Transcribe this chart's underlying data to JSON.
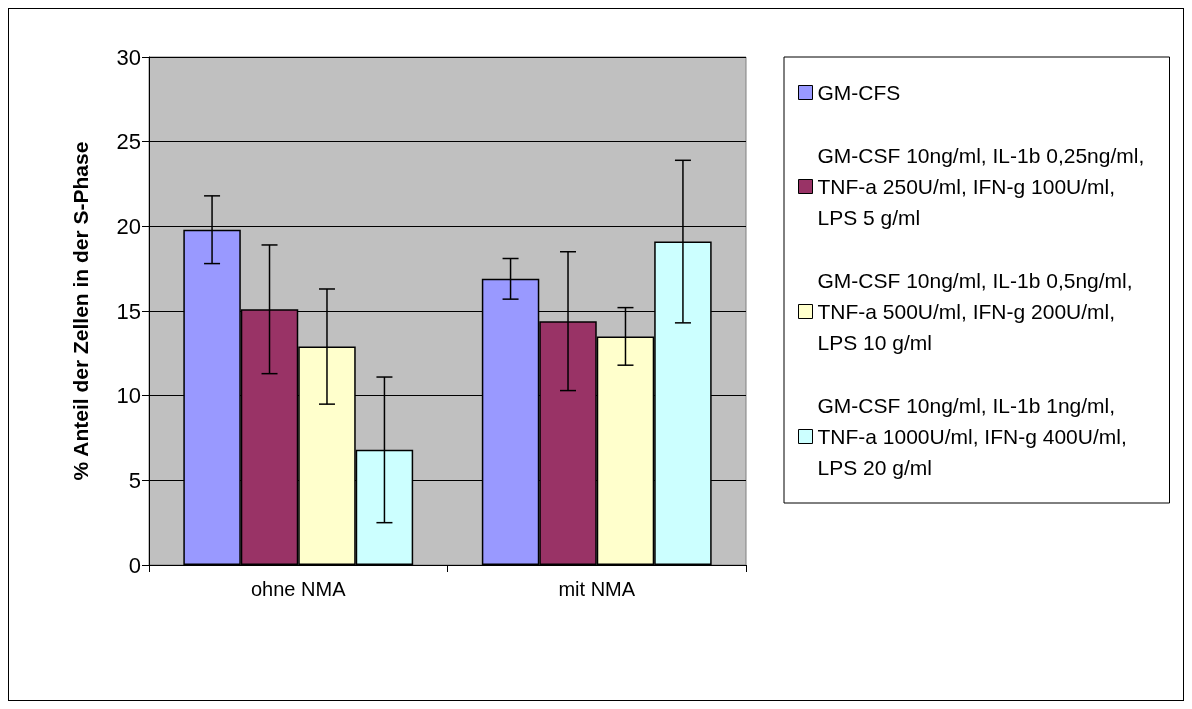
{
  "chart_data": {
    "type": "bar",
    "ylabel": "% Anteil der Zellen in der S-Phase",
    "categories": [
      "ohne NMA",
      "mit NMA"
    ],
    "series": [
      {
        "name": "GM-CFS",
        "color": "#9999ff",
        "values": [
          19.8,
          16.9
        ],
        "errors": [
          2.0,
          1.2
        ]
      },
      {
        "name": "GM-CSF 10ng/ml, IL-1b 0,25ng/ml, TNF-a 250U/ml, IFN-g 100U/ml, LPS 5 g/ml",
        "color": "#993366",
        "values": [
          15.1,
          14.4
        ],
        "errors": [
          3.8,
          4.1
        ]
      },
      {
        "name": "GM-CSF 10ng/ml, IL-1b 0,5ng/ml, TNF-a 500U/ml, IFN-g 200U/ml, LPS 10 g/ml",
        "color": "#ffffcc",
        "values": [
          12.9,
          13.5
        ],
        "errors": [
          3.4,
          1.7
        ]
      },
      {
        "name": "GM-CSF 10ng/ml, IL-1b 1ng/ml, TNF-a 1000U/ml, IFN-g 400U/ml, LPS 20 g/ml",
        "color": "#ccffff",
        "values": [
          6.8,
          19.1
        ],
        "errors": [
          4.3,
          4.8
        ]
      }
    ],
    "ylim": [
      0,
      30
    ],
    "yticks": [
      0,
      5,
      10,
      15,
      20,
      25,
      30
    ],
    "grid": "y",
    "legend": "right"
  }
}
